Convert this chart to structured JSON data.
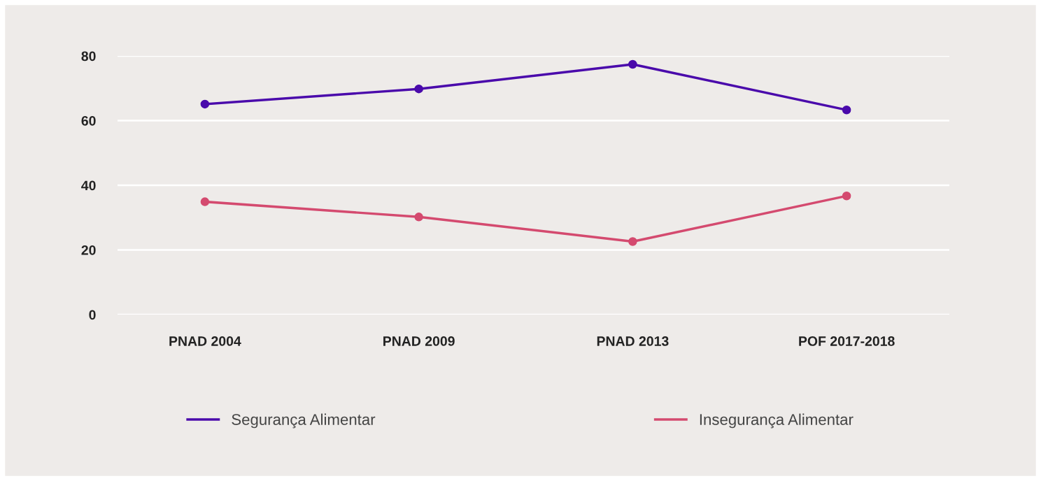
{
  "chart_data": {
    "type": "line",
    "categories": [
      "PNAD 2004",
      "PNAD 2009",
      "PNAD 2013",
      "POF 2017-2018"
    ],
    "series": [
      {
        "name": "Segurança Alimentar",
        "color": "#4a0aab",
        "values": [
          65.1,
          69.8,
          77.4,
          63.3
        ]
      },
      {
        "name": "Insegurança Alimentar",
        "color": "#d44a6f",
        "values": [
          34.9,
          30.2,
          22.6,
          36.7
        ]
      }
    ],
    "ylim": [
      0,
      80
    ],
    "yticks": [
      0,
      20,
      40,
      60,
      80
    ],
    "grid": "y",
    "legend": "bottom",
    "marker": "circle",
    "line_style": "solid"
  }
}
